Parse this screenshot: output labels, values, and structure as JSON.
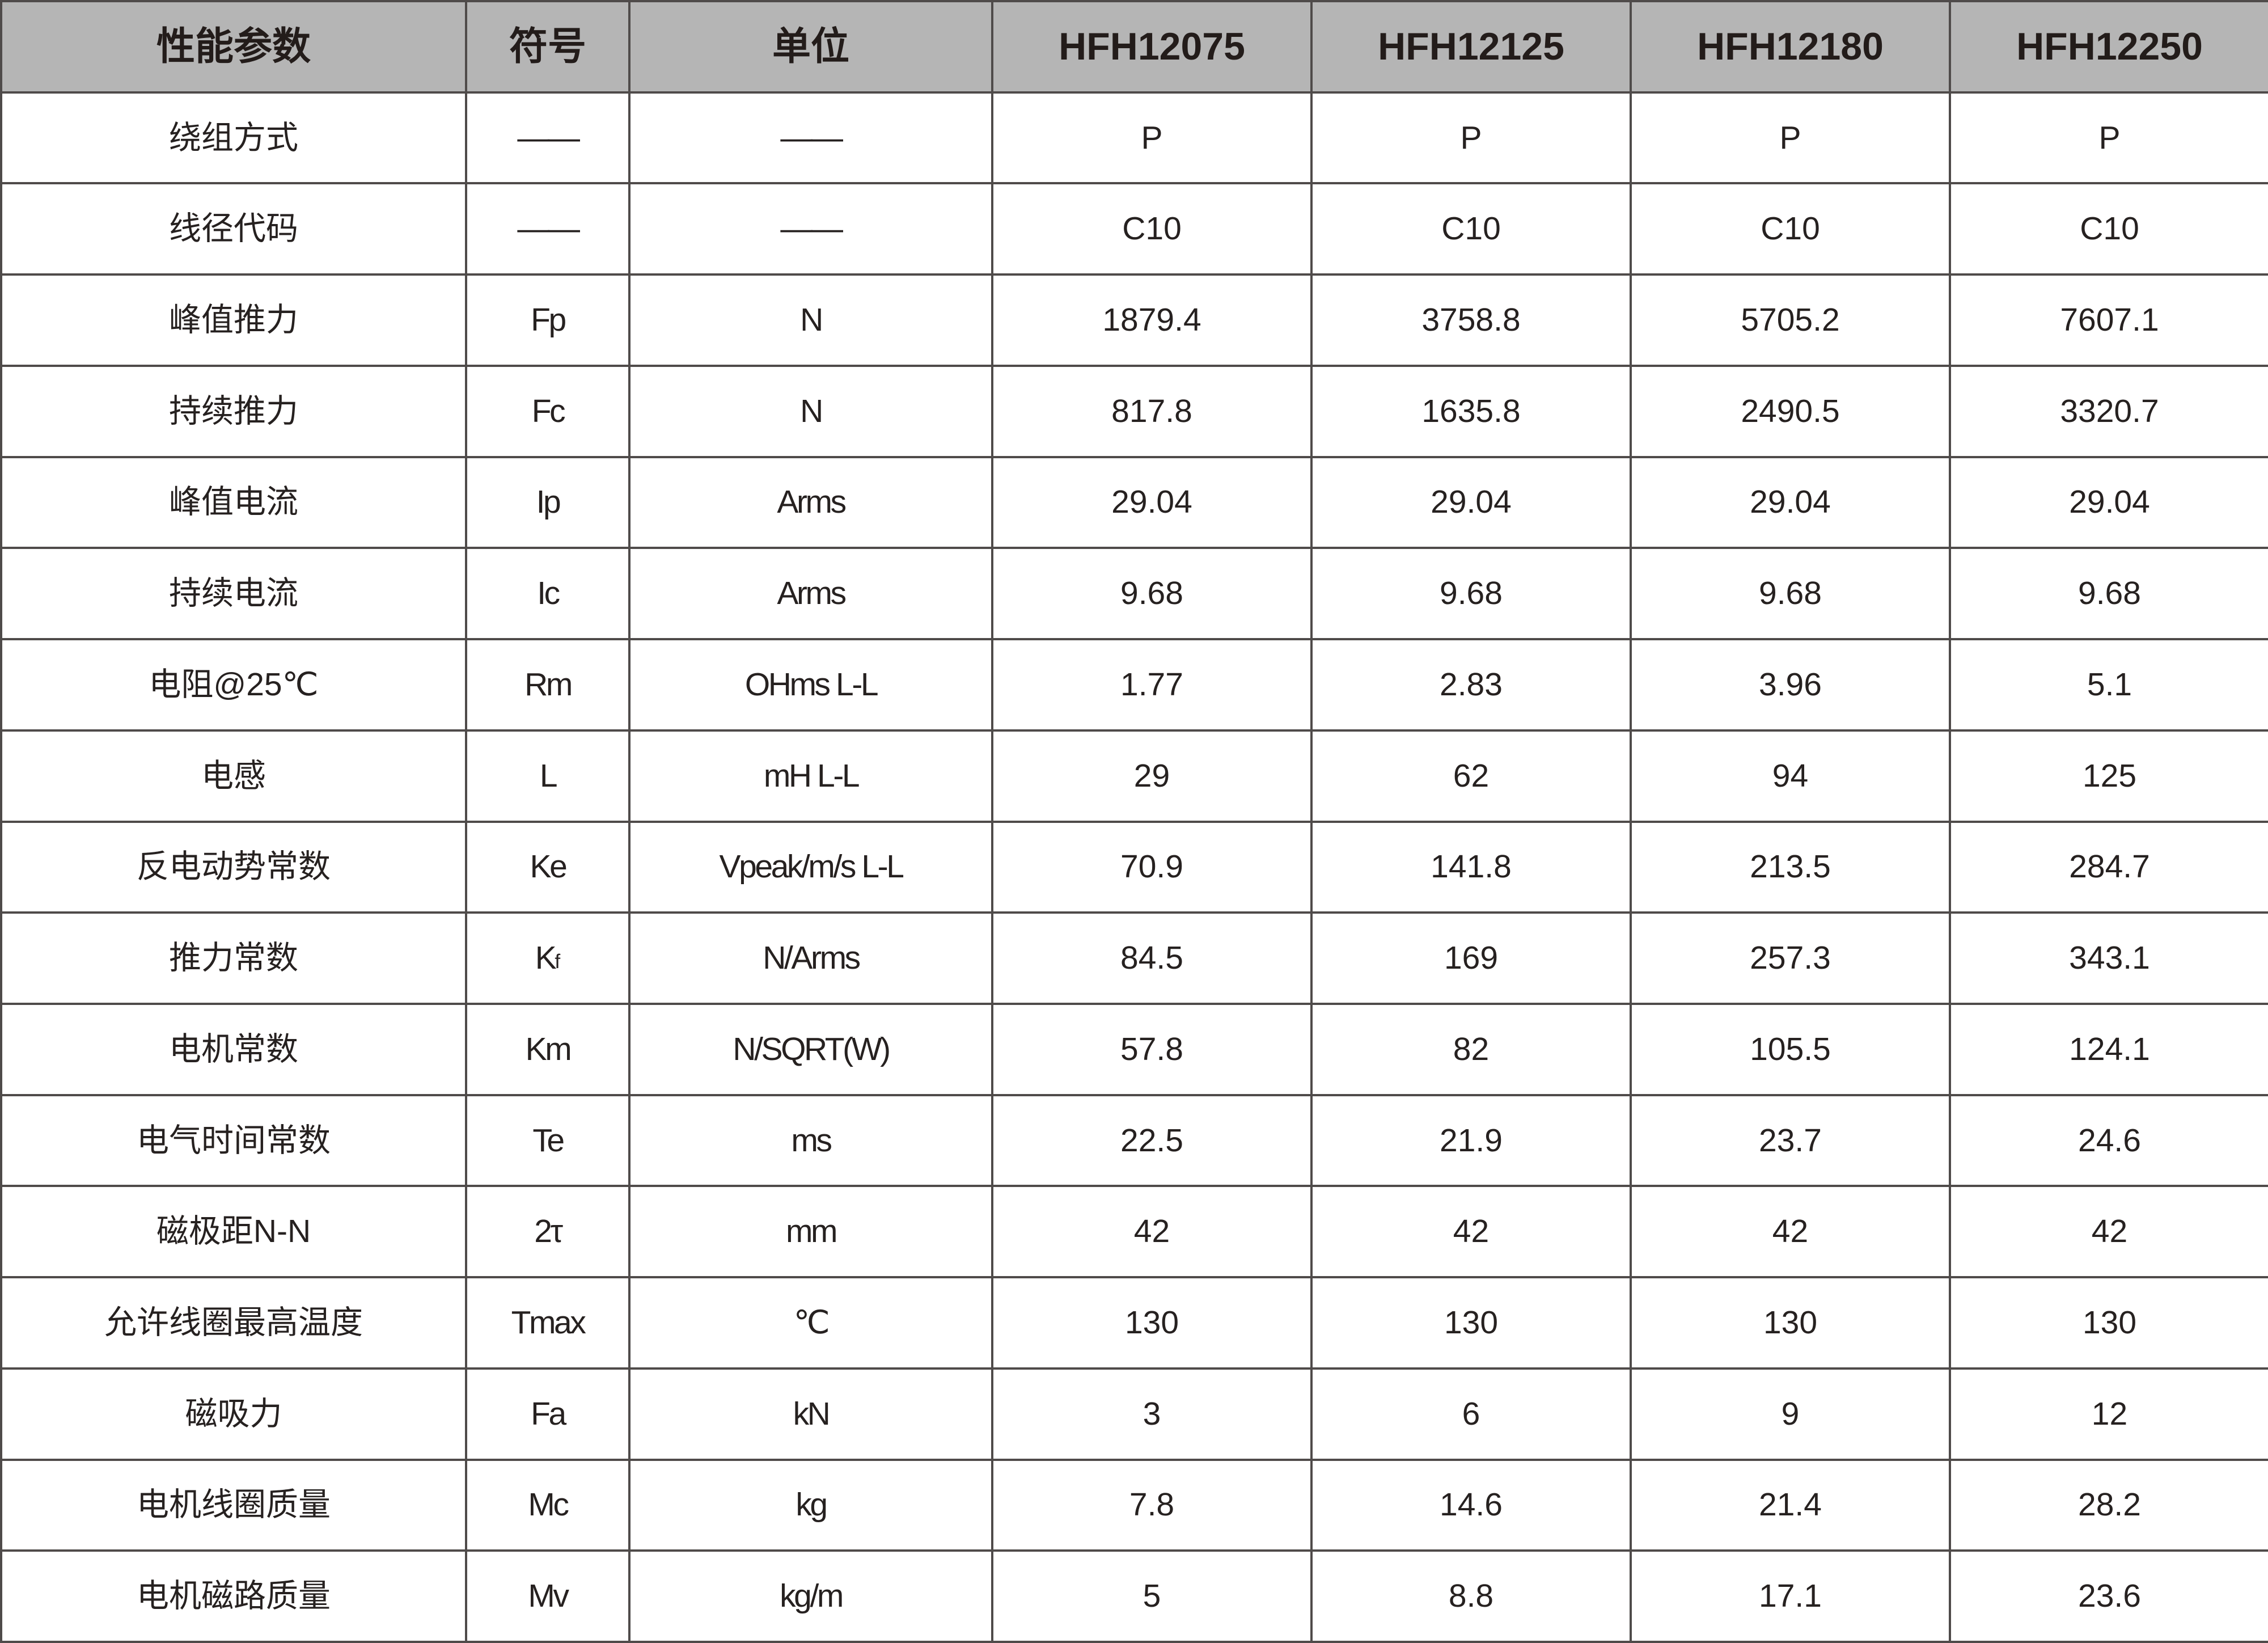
{
  "table": {
    "colors": {
      "header_bg": "#b5b5b5",
      "border": "#4f4b4a",
      "text": "#262120"
    },
    "columns": [
      "性能参数",
      "符号",
      "单位",
      "HFH12075",
      "HFH12125",
      "HFH12180",
      "HFH12250"
    ],
    "rows": [
      {
        "param": "绕组方式",
        "symbol": "——",
        "unit": "——",
        "values": [
          "P",
          "P",
          "P",
          "P"
        ]
      },
      {
        "param": "线径代码",
        "symbol": "——",
        "unit": "——",
        "values": [
          "C10",
          "C10",
          "C10",
          "C10"
        ]
      },
      {
        "param": "峰值推力",
        "symbol": "Fp",
        "unit": "N",
        "values": [
          "1879.4",
          "3758.8",
          "5705.2",
          "7607.1"
        ]
      },
      {
        "param": "持续推力",
        "symbol": "Fc",
        "unit": "N",
        "values": [
          "817.8",
          "1635.8",
          "2490.5",
          "3320.7"
        ]
      },
      {
        "param": "峰值电流",
        "symbol": "Ip",
        "unit": "Arms",
        "values": [
          "29.04",
          "29.04",
          "29.04",
          "29.04"
        ]
      },
      {
        "param": "持续电流",
        "symbol": "Ic",
        "unit": "Arms",
        "values": [
          "9.68",
          "9.68",
          "9.68",
          "9.68"
        ]
      },
      {
        "param": "电阻@25℃",
        "symbol": "Rm",
        "unit": "OHms L-L",
        "values": [
          "1.77",
          "2.83",
          "3.96",
          "5.1"
        ]
      },
      {
        "param": "电感",
        "symbol": "L",
        "unit": "mH L-L",
        "values": [
          "29",
          "62",
          "94",
          "125"
        ]
      },
      {
        "param": "反电动势常数",
        "symbol": "Ke",
        "unit": "Vpeak/m/s L-L",
        "values": [
          "70.9",
          "141.8",
          "213.5",
          "284.7"
        ]
      },
      {
        "param": "推力常数",
        "symbol": "K",
        "symbol_sub": "f",
        "unit": "N/Arms",
        "values": [
          "84.5",
          "169",
          "257.3",
          "343.1"
        ]
      },
      {
        "param": "电机常数",
        "symbol": "Km",
        "unit": "N/SQRT(W)",
        "values": [
          "57.8",
          "82",
          "105.5",
          "124.1"
        ]
      },
      {
        "param": "电气时间常数",
        "symbol": "Te",
        "unit": "ms",
        "values": [
          "22.5",
          "21.9",
          "23.7",
          "24.6"
        ]
      },
      {
        "param": "磁极距N-N",
        "symbol": "2τ",
        "unit": "mm",
        "values": [
          "42",
          "42",
          "42",
          "42"
        ]
      },
      {
        "param": "允许线圈最高温度",
        "symbol": "Tmax",
        "unit": "℃",
        "values": [
          "130",
          "130",
          "130",
          "130"
        ]
      },
      {
        "param": "磁吸力",
        "symbol": "Fa",
        "unit": "kN",
        "values": [
          "3",
          "6",
          "9",
          "12"
        ]
      },
      {
        "param": "电机线圈质量",
        "symbol": "Mc",
        "unit": "kg",
        "values": [
          "7.8",
          "14.6",
          "21.4",
          "28.2"
        ]
      },
      {
        "param": "电机磁路质量",
        "symbol": "Mv",
        "unit": "kg/m",
        "values": [
          "5",
          "8.8",
          "17.1",
          "23.6"
        ]
      }
    ]
  }
}
